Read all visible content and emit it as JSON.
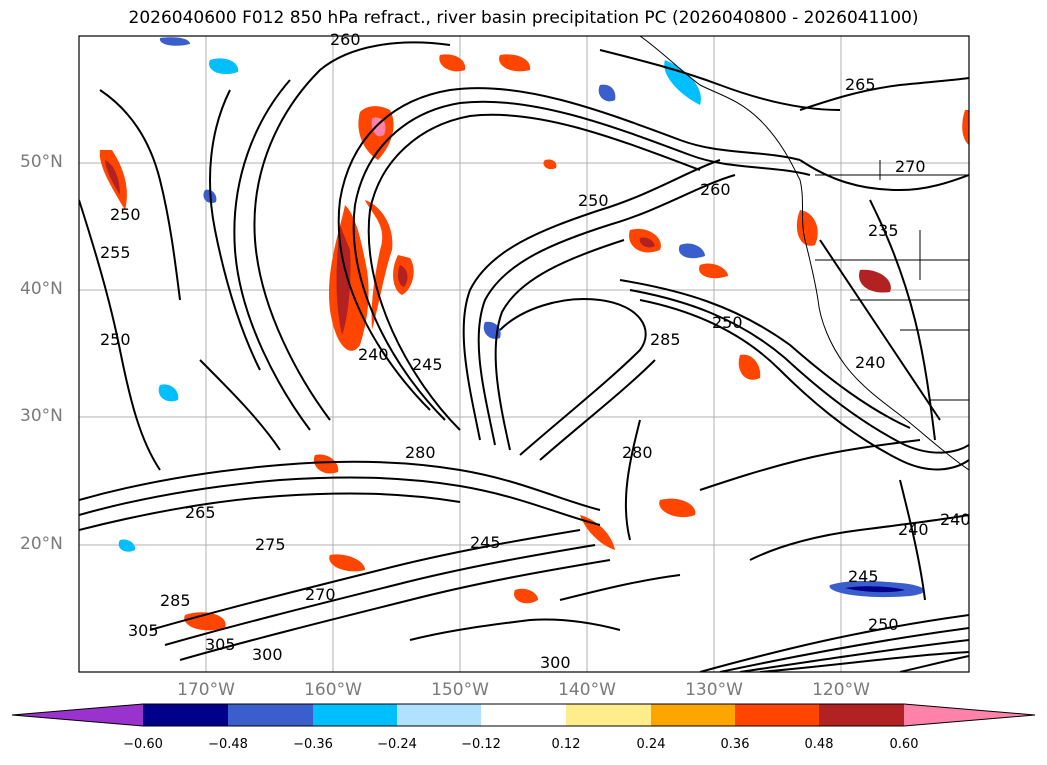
{
  "title": "2026040600 F012 850 hPa refract., river basin precipitation PC (2026040800 - 2026041100)",
  "map": {
    "lat_labels": [
      "50°N",
      "40°N",
      "30°N",
      "20°N"
    ],
    "lon_labels": [
      "170°W",
      "160°W",
      "150°W",
      "140°W",
      "130°W",
      "120°W"
    ],
    "contour_labels": [
      "260",
      "265",
      "270",
      "235",
      "250",
      "255",
      "260",
      "245",
      "250",
      "280",
      "285",
      "240",
      "250",
      "240",
      "245",
      "250",
      "240",
      "245",
      "300",
      "305",
      "305",
      "300",
      "285",
      "275",
      "280",
      "270",
      "265",
      "240",
      "250"
    ],
    "colors": {
      "contour": "#000000",
      "coastline": "#000000",
      "gridline": "#b0b0b0",
      "axis_label": "#7a7a7a"
    }
  },
  "colorbar": {
    "tick_labels": [
      "−0.60",
      "−0.48",
      "−0.36",
      "−0.24",
      "−0.12",
      "0.12",
      "0.24",
      "0.36",
      "0.48",
      "0.60"
    ],
    "colors": [
      "#9a32cd",
      "#00008b",
      "#3a5fcd",
      "#00bfff",
      "#b0e2ff",
      "#ffffff",
      "#ffec8b",
      "#ffa500",
      "#ff4500",
      "#b22222",
      "#ff82ab"
    ],
    "extend": "both"
  }
}
